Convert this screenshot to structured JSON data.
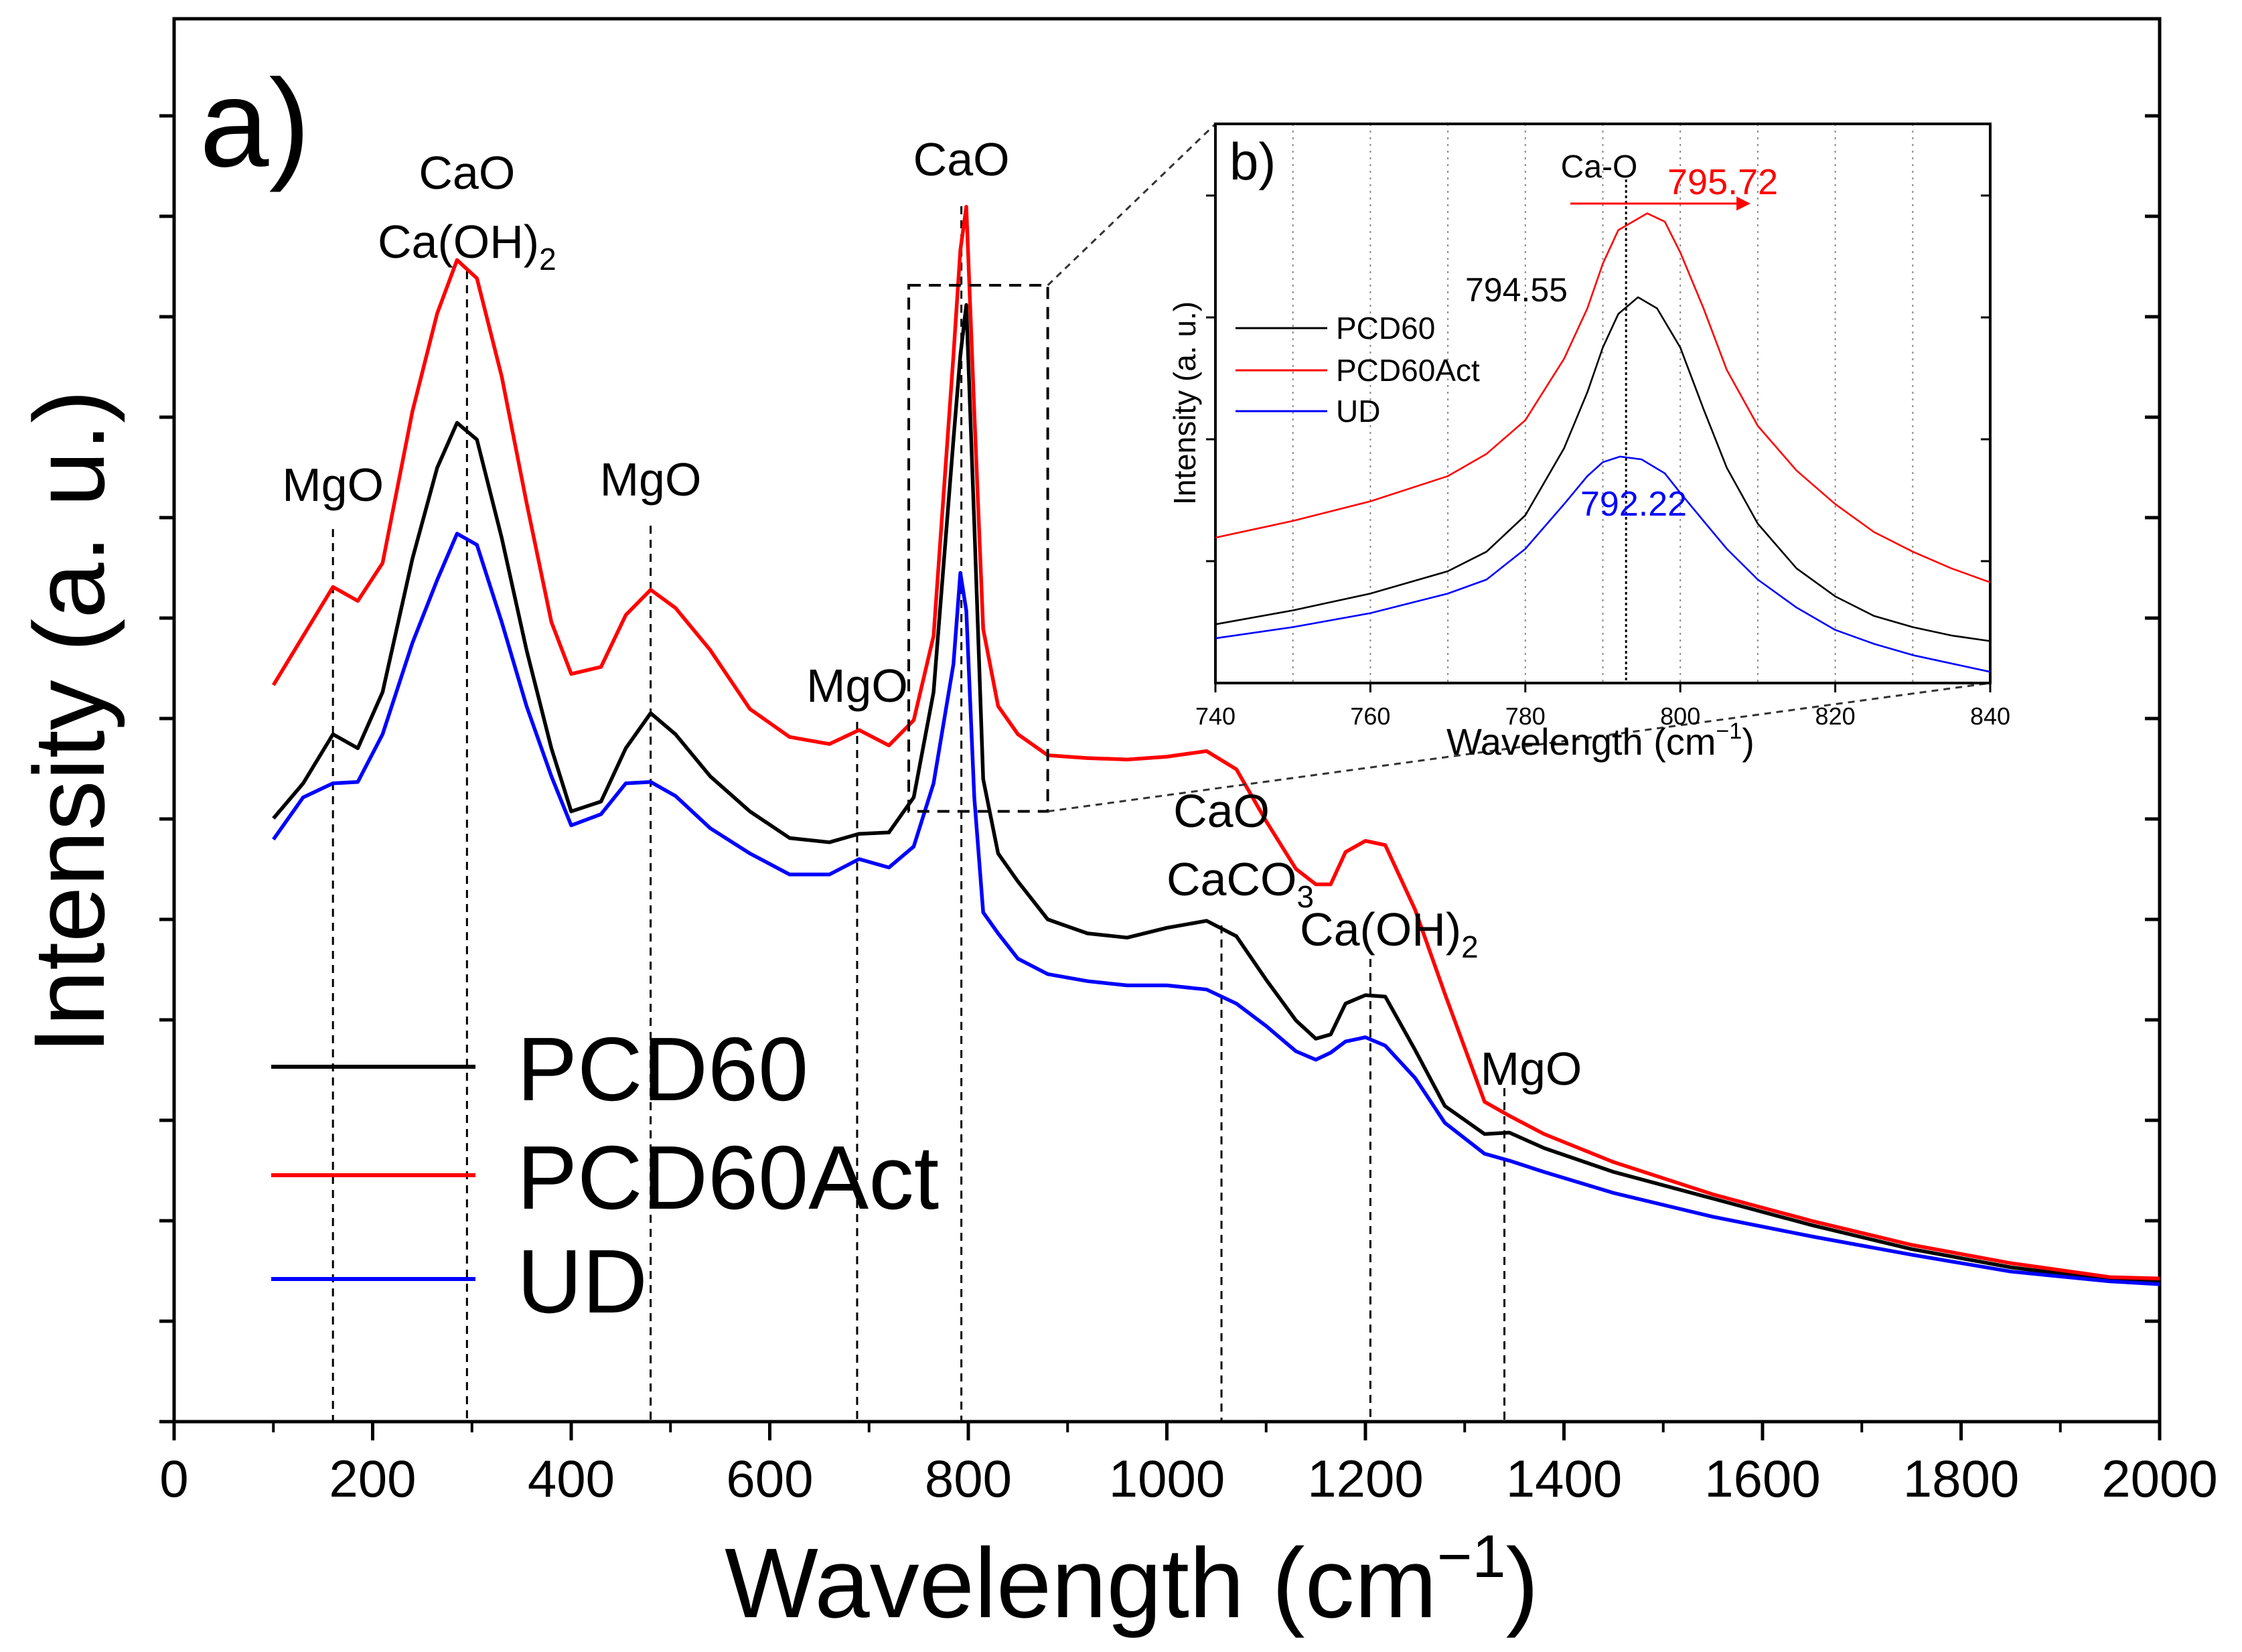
{
  "chart_data": [
    {
      "panel_label": "a)",
      "type": "line",
      "xlabel": "Wavelength (cm",
      "xlabel_sup": "−1",
      "xlabel_suffix": ")",
      "ylabel": "Intensity (a. u.)",
      "xlim": [
        0,
        2000
      ],
      "ylim": [
        0,
        100
      ],
      "x_ticks": [
        0,
        200,
        400,
        600,
        800,
        1000,
        1200,
        1400,
        1600,
        1800,
        2000
      ],
      "x_tick_labels": [
        "0",
        "200",
        "400",
        "600",
        "800",
        "1000",
        "1200",
        "1400",
        "1600",
        "1800",
        "2000"
      ],
      "legend_position": "bottom-left",
      "legend": [
        "PCD60",
        "PCD60Act",
        "UD"
      ],
      "series": [
        {
          "name": "PCD60",
          "color": "#000000",
          "x": [
            100,
            130,
            160,
            185,
            210,
            240,
            265,
            285,
            305,
            330,
            355,
            380,
            400,
            430,
            455,
            480,
            505,
            540,
            580,
            620,
            660,
            690,
            720,
            745,
            765,
            785,
            792,
            798,
            806,
            815,
            830,
            850,
            880,
            920,
            960,
            1000,
            1040,
            1070,
            1100,
            1130,
            1150,
            1165,
            1180,
            1200,
            1220,
            1250,
            1280,
            1320,
            1345,
            1380,
            1450,
            1550,
            1650,
            1750,
            1850,
            1950,
            2000
          ],
          "y": [
            43,
            45.5,
            49,
            48,
            52,
            61.5,
            68,
            71.2,
            70,
            63,
            55,
            48,
            43.5,
            44.2,
            48,
            50.5,
            49,
            46,
            43.5,
            41.6,
            41.3,
            41.9,
            42,
            44.5,
            52,
            70,
            76,
            79.6,
            64,
            45.8,
            40.5,
            38.5,
            35.8,
            34.8,
            34.5,
            35.2,
            35.7,
            34.6,
            31.5,
            28.6,
            27.3,
            27.6,
            29.8,
            30.4,
            30.3,
            26.5,
            22.5,
            20.5,
            20.6,
            19.5,
            17.8,
            15.9,
            14,
            12.3,
            11,
            10.1,
            10
          ]
        },
        {
          "name": "PCD60Act",
          "color": "#ff0000",
          "x": [
            100,
            130,
            160,
            185,
            210,
            240,
            265,
            285,
            305,
            330,
            355,
            380,
            400,
            430,
            455,
            480,
            505,
            540,
            580,
            620,
            660,
            690,
            720,
            745,
            765,
            785,
            792,
            798,
            806,
            815,
            830,
            850,
            880,
            920,
            960,
            1000,
            1040,
            1070,
            1100,
            1130,
            1150,
            1165,
            1180,
            1200,
            1220,
            1250,
            1280,
            1320,
            1345,
            1380,
            1450,
            1550,
            1650,
            1750,
            1850,
            1950,
            2000
          ],
          "y": [
            52.5,
            56,
            59.5,
            58.5,
            61.2,
            72,
            79,
            82.8,
            81.5,
            74.5,
            65.5,
            57,
            53.3,
            53.8,
            57.5,
            59.3,
            58,
            55,
            50.8,
            48.8,
            48.3,
            49.3,
            48.2,
            50,
            56,
            76,
            83.5,
            86.6,
            72,
            56.5,
            51,
            49,
            47.5,
            47.3,
            47.2,
            47.4,
            47.8,
            46.5,
            42.8,
            39.4,
            38.3,
            38.3,
            40.6,
            41.4,
            41.1,
            36.5,
            30.5,
            22.8,
            21.8,
            20.5,
            18.5,
            16.2,
            14.3,
            12.6,
            11.3,
            10.3,
            10.2
          ]
        },
        {
          "name": "UD",
          "color": "#0000ff",
          "x": [
            100,
            130,
            160,
            185,
            210,
            240,
            265,
            285,
            305,
            330,
            355,
            380,
            400,
            430,
            455,
            480,
            505,
            540,
            580,
            620,
            660,
            690,
            720,
            745,
            765,
            785,
            792,
            798,
            806,
            815,
            830,
            850,
            880,
            920,
            960,
            1000,
            1040,
            1070,
            1100,
            1130,
            1150,
            1165,
            1180,
            1200,
            1220,
            1250,
            1280,
            1320,
            1345,
            1380,
            1450,
            1550,
            1650,
            1750,
            1850,
            1950,
            2000
          ],
          "y": [
            41.5,
            44.5,
            45.5,
            45.6,
            49,
            55.5,
            60,
            63.3,
            62.5,
            57,
            51,
            46,
            42.5,
            43.3,
            45.5,
            45.6,
            44.6,
            42.3,
            40.5,
            39,
            39,
            40.1,
            39.5,
            41,
            45.5,
            54,
            60.5,
            57.8,
            44.5,
            36.3,
            34.8,
            33,
            31.9,
            31.4,
            31.1,
            31.1,
            30.8,
            29.8,
            28.2,
            26.4,
            25.8,
            26.3,
            27.1,
            27.4,
            26.8,
            24.5,
            21.3,
            19.1,
            18.6,
            17.8,
            16.3,
            14.6,
            13.2,
            11.9,
            10.7,
            10,
            9.8
          ]
        }
      ],
      "peak_annotations": [
        {
          "label": "MgO",
          "x": 160
        },
        {
          "label": "CaO",
          "label2": "Ca(OH)",
          "label2_sub": "2",
          "x": 295
        },
        {
          "label": "MgO",
          "x": 480
        },
        {
          "label": "MgO",
          "x": 688
        },
        {
          "label": "CaO",
          "x": 793
        },
        {
          "label": "CaO",
          "label2": "CaCO",
          "label2_sub": "3",
          "x": 1055
        },
        {
          "label": "Ca(OH)",
          "label_sub": "2",
          "x": 1205
        },
        {
          "label": "MgO",
          "x": 1340
        }
      ],
      "zoom_box": {
        "x": [
          740,
          880
        ],
        "y": [
          43.5,
          81
        ]
      }
    },
    {
      "panel_label": "b)",
      "type": "line",
      "xlabel": "Wavelength (cm",
      "xlabel_sup": "−1",
      "xlabel_suffix": ")",
      "ylabel": "Intensity (a. u.)",
      "xlim": [
        740,
        840
      ],
      "ylim": [
        0,
        100
      ],
      "x_ticks": [
        740,
        760,
        780,
        800,
        820,
        840
      ],
      "x_tick_labels": [
        "740",
        "760",
        "780",
        "800",
        "820",
        "840"
      ],
      "legend_position": "middle-left",
      "legend": [
        "PCD60",
        "PCD60Act",
        "UD"
      ],
      "series": [
        {
          "name": "PCD60",
          "color": "#000000",
          "x": [
            740,
            750,
            760,
            770,
            775,
            780,
            785,
            788,
            790,
            792,
            794.55,
            797,
            800,
            803,
            806,
            810,
            815,
            820,
            825,
            830,
            835,
            840
          ],
          "y": [
            10.5,
            13,
            16,
            20,
            23.5,
            30,
            42,
            52,
            60,
            66,
            69,
            67,
            60,
            49,
            38.5,
            28.5,
            20.5,
            15.5,
            12,
            10,
            8.5,
            7.5
          ]
        },
        {
          "name": "PCD60Act",
          "color": "#ff0000",
          "x": [
            740,
            750,
            760,
            770,
            775,
            780,
            785,
            788,
            790,
            792,
            795.72,
            798,
            800,
            803,
            806,
            810,
            815,
            820,
            825,
            830,
            835,
            840
          ],
          "y": [
            26,
            29,
            32.5,
            37,
            41,
            47,
            58,
            67,
            75,
            81,
            84,
            82.5,
            77,
            67,
            56,
            46,
            38,
            32,
            27,
            23.5,
            20.5,
            18
          ]
        },
        {
          "name": "UD",
          "color": "#0000ff",
          "x": [
            740,
            750,
            760,
            770,
            775,
            780,
            785,
            788,
            790,
            792.22,
            795,
            798,
            800,
            803,
            806,
            810,
            815,
            820,
            825,
            830,
            835,
            840
          ],
          "y": [
            8,
            10,
            12.5,
            16,
            18.5,
            24,
            32,
            37,
            39.5,
            40.5,
            40,
            37.5,
            34,
            29,
            24,
            18.5,
            13.5,
            9.5,
            7,
            5,
            3.5,
            2
          ]
        }
      ],
      "peak_labels": [
        {
          "text": "795.72",
          "color": "#ff0000"
        },
        {
          "text": "794.55",
          "color": "#000000"
        },
        {
          "text": "792.22",
          "color": "#0000ff"
        }
      ],
      "marker_line_x": 793,
      "marker_label": "Ca-O",
      "vertical_grid": [
        750,
        760,
        770,
        780,
        790,
        800,
        810,
        820,
        830
      ]
    }
  ]
}
